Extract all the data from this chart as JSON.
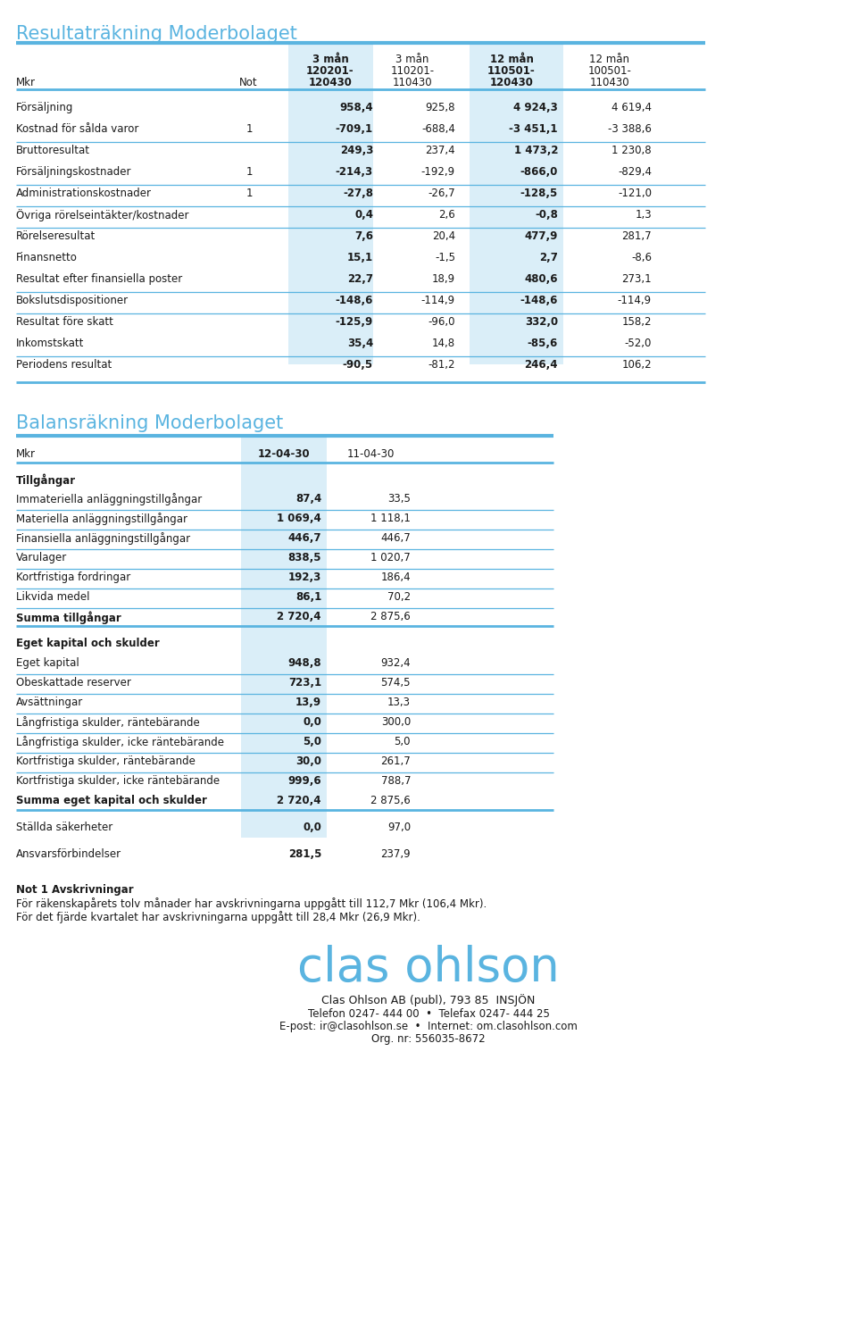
{
  "title1": "Resultaträkning Moderbolaget",
  "title2": "Balansräkning Moderbolaget",
  "title_color": "#5ab4e0",
  "highlight_bg": "#daeef8",
  "line_color": "#5ab4e0",
  "bg_color": "#ffffff",
  "resultat_headers": [
    [
      "3 mån",
      "3 mån",
      "12 mån",
      "12 mån"
    ],
    [
      "120201-",
      "110201-",
      "110501-",
      "100501-"
    ],
    [
      "120430",
      "110430",
      "120430",
      "110430"
    ]
  ],
  "resultat_rows": [
    {
      "label": "Försäljning",
      "not": "",
      "v1": "958,4",
      "v2": "925,8",
      "v3": "4 924,3",
      "v4": "4 619,4",
      "sep": false
    },
    {
      "label": "Kostnad för sålda varor",
      "not": "1",
      "v1": "-709,1",
      "v2": "-688,4",
      "v3": "-3 451,1",
      "v4": "-3 388,6",
      "sep": true
    },
    {
      "label": "Bruttoresultat",
      "not": "",
      "v1": "249,3",
      "v2": "237,4",
      "v3": "1 473,2",
      "v4": "1 230,8",
      "sep": false
    },
    {
      "label": "Försäljningskostnader",
      "not": "1",
      "v1": "-214,3",
      "v2": "-192,9",
      "v3": "-866,0",
      "v4": "-829,4",
      "sep": true
    },
    {
      "label": "Administrationskostnader",
      "not": "1",
      "v1": "-27,8",
      "v2": "-26,7",
      "v3": "-128,5",
      "v4": "-121,0",
      "sep": true
    },
    {
      "label": "Övriga rörelseintäkter/kostnader",
      "not": "",
      "v1": "0,4",
      "v2": "2,6",
      "v3": "-0,8",
      "v4": "1,3",
      "sep": true
    },
    {
      "label": "Rörelseresultat",
      "not": "",
      "v1": "7,6",
      "v2": "20,4",
      "v3": "477,9",
      "v4": "281,7",
      "sep": false
    },
    {
      "label": "Finansnetto",
      "not": "",
      "v1": "15,1",
      "v2": "-1,5",
      "v3": "2,7",
      "v4": "-8,6",
      "sep": false
    },
    {
      "label": "Resultat efter finansiella poster",
      "not": "",
      "v1": "22,7",
      "v2": "18,9",
      "v3": "480,6",
      "v4": "273,1",
      "sep": true
    },
    {
      "label": "Bokslutsdispositioner",
      "not": "",
      "v1": "-148,6",
      "v2": "-114,9",
      "v3": "-148,6",
      "v4": "-114,9",
      "sep": true
    },
    {
      "label": "Resultat före skatt",
      "not": "",
      "v1": "-125,9",
      "v2": "-96,0",
      "v3": "332,0",
      "v4": "158,2",
      "sep": false
    },
    {
      "label": "Inkomstskatt",
      "not": "",
      "v1": "35,4",
      "v2": "14,8",
      "v3": "-85,6",
      "v4": "-52,0",
      "sep": true
    },
    {
      "label": "Periodens resultat",
      "not": "",
      "v1": "-90,5",
      "v2": "-81,2",
      "v3": "246,4",
      "v4": "106,2",
      "sep": false
    }
  ],
  "balans_headers": [
    "Mkr",
    "12-04-30",
    "11-04-30"
  ],
  "balans_rows": [
    {
      "label": "Tillgångar",
      "v1": "",
      "v2": "",
      "bold": true,
      "sep": false,
      "gap_before": false
    },
    {
      "label": "Immateriella anläggningstillgångar",
      "v1": "87,4",
      "v2": "33,5",
      "bold": false,
      "sep": true,
      "gap_before": false
    },
    {
      "label": "Materiella anläggningstillgångar",
      "v1": "1 069,4",
      "v2": "1 118,1",
      "bold": false,
      "sep": true,
      "gap_before": false
    },
    {
      "label": "Finansiella anläggningstillgångar",
      "v1": "446,7",
      "v2": "446,7",
      "bold": false,
      "sep": true,
      "gap_before": false
    },
    {
      "label": "Varulager",
      "v1": "838,5",
      "v2": "1 020,7",
      "bold": false,
      "sep": true,
      "gap_before": false
    },
    {
      "label": "Kortfristiga fordringar",
      "v1": "192,3",
      "v2": "186,4",
      "bold": false,
      "sep": true,
      "gap_before": false
    },
    {
      "label": "Likvida medel",
      "v1": "86,1",
      "v2": "70,2",
      "bold": false,
      "sep": true,
      "gap_before": false
    },
    {
      "label": "Summa tillgångar",
      "v1": "2 720,4",
      "v2": "2 875,6",
      "bold": true,
      "sep": false,
      "gap_before": false
    },
    {
      "label": "Eget kapital och skulder",
      "v1": "",
      "v2": "",
      "bold": true,
      "sep": false,
      "gap_before": true
    },
    {
      "label": "Eget kapital",
      "v1": "948,8",
      "v2": "932,4",
      "bold": false,
      "sep": true,
      "gap_before": false
    },
    {
      "label": "Obeskattade reserver",
      "v1": "723,1",
      "v2": "574,5",
      "bold": false,
      "sep": true,
      "gap_before": false
    },
    {
      "label": "Avsättningar",
      "v1": "13,9",
      "v2": "13,3",
      "bold": false,
      "sep": true,
      "gap_before": false
    },
    {
      "label": "Långfristiga skulder, räntebärande",
      "v1": "0,0",
      "v2": "300,0",
      "bold": false,
      "sep": true,
      "gap_before": false
    },
    {
      "label": "Långfristiga skulder, icke räntebärande",
      "v1": "5,0",
      "v2": "5,0",
      "bold": false,
      "sep": true,
      "gap_before": false
    },
    {
      "label": "Kortfristiga skulder, räntebärande",
      "v1": "30,0",
      "v2": "261,7",
      "bold": false,
      "sep": true,
      "gap_before": false
    },
    {
      "label": "Kortfristiga skulder, icke räntebärande",
      "v1": "999,6",
      "v2": "788,7",
      "bold": false,
      "sep": false,
      "gap_before": false
    },
    {
      "label": "Summa eget kapital och skulder",
      "v1": "2 720,4",
      "v2": "2 875,6",
      "bold": true,
      "sep": false,
      "gap_before": false
    },
    {
      "label": "Ställda säkerheter",
      "v1": "0,0",
      "v2": "97,0",
      "bold": false,
      "sep": false,
      "gap_before": true
    },
    {
      "label": "Ansvarsförbindelser",
      "v1": "281,5",
      "v2": "237,9",
      "bold": false,
      "sep": false,
      "gap_before": true
    }
  ],
  "note_title": "Not 1 Avskrivningar",
  "note_text1": "För räkenskapårets tolv månader har avskrivningarna uppgått till 112,7 Mkr (106,4 Mkr).",
  "note_text2": "För det fjärde kvartalet har avskrivningarna uppgått till 28,4 Mkr (26,9 Mkr).",
  "footer_logo": "clas ohlson",
  "footer_line1": "Clas Ohlson AB (publ), 793 85  INSJÖN",
  "footer_line2": "Telefon 0247- 444 00  •  Telefax 0247- 444 25",
  "footer_line3": "E-post: ir@clasohlson.se  •  Internet: om.clasohlson.com",
  "footer_line4": "Org. nr: 556035-8672"
}
